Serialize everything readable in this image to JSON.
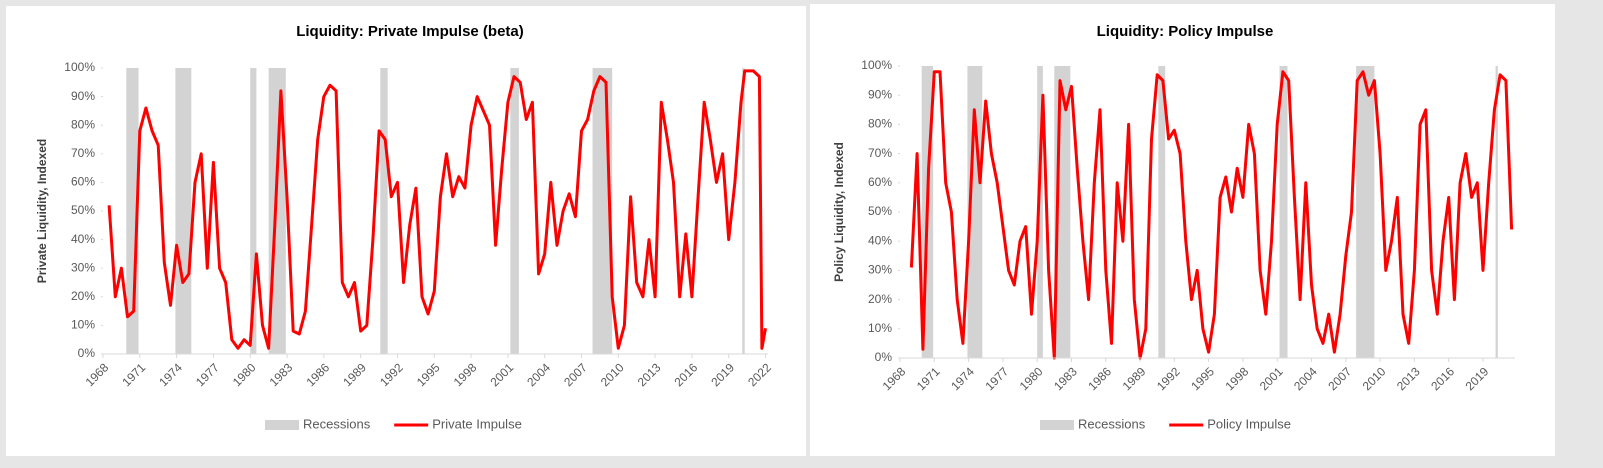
{
  "chart_data": [
    {
      "type": "line",
      "title": "Liquidity: Private Impulse (beta)",
      "y_label": "Private Liquidity, Indexed",
      "xlim": [
        1968,
        2022.2
      ],
      "xticks": [
        1968,
        1971,
        1974,
        1977,
        1980,
        1983,
        1986,
        1989,
        1992,
        1995,
        1998,
        2001,
        2004,
        2007,
        2010,
        2013,
        2016,
        2019,
        2022
      ],
      "ylim": [
        0,
        100
      ],
      "yticks": [
        {
          "value": 0,
          "label": "0%"
        },
        {
          "value": 10,
          "label": "10%"
        },
        {
          "value": 20,
          "label": "20%"
        },
        {
          "value": 30,
          "label": "30%"
        },
        {
          "value": 40,
          "label": "40%"
        },
        {
          "value": 50,
          "label": "50%"
        },
        {
          "value": 60,
          "label": "60%"
        },
        {
          "value": 70,
          "label": "70%"
        },
        {
          "value": 80,
          "label": "80%"
        },
        {
          "value": 90,
          "label": "90%"
        },
        {
          "value": 100,
          "label": "100%"
        }
      ],
      "series": [
        {
          "name": "Recessions",
          "color": "#d3d3d3",
          "ranges": [
            [
              1969.9,
              1970.9
            ],
            [
              1973.9,
              1975.2
            ],
            [
              1980.0,
              1980.5
            ],
            [
              1981.5,
              1982.9
            ],
            [
              1990.6,
              1991.2
            ],
            [
              2001.2,
              2001.9
            ],
            [
              2007.9,
              2009.5
            ],
            [
              2020.1,
              2020.3
            ]
          ]
        },
        {
          "name": "Private Impulse",
          "color": "#ff0000",
          "x": [
            1968.5,
            1969,
            1969.5,
            1970,
            1970.5,
            1971,
            1971.5,
            1972,
            1972.5,
            1973,
            1973.5,
            1974,
            1974.5,
            1975,
            1975.5,
            1976,
            1976.5,
            1977,
            1977.5,
            1978,
            1978.5,
            1979,
            1979.5,
            1980,
            1980.5,
            1981,
            1981.5,
            1982,
            1982.5,
            1983,
            1983.5,
            1984,
            1984.5,
            1985,
            1985.5,
            1986,
            1986.5,
            1987,
            1987.5,
            1988,
            1988.5,
            1989,
            1989.5,
            1990,
            1990.5,
            1991,
            1991.5,
            1992,
            1992.5,
            1993,
            1993.5,
            1994,
            1994.5,
            1995,
            1995.5,
            1996,
            1996.5,
            1997,
            1997.5,
            1998,
            1998.5,
            1999,
            1999.5,
            2000,
            2000.5,
            2001,
            2001.5,
            2002,
            2002.5,
            2003,
            2003.5,
            2004,
            2004.5,
            2005,
            2005.5,
            2006,
            2006.5,
            2007,
            2007.5,
            2008,
            2008.5,
            2009,
            2009.5,
            2010,
            2010.5,
            2011,
            2011.5,
            2012,
            2012.5,
            2013,
            2013.5,
            2014,
            2014.5,
            2015,
            2015.5,
            2016,
            2016.5,
            2017,
            2017.5,
            2018,
            2018.5,
            2019,
            2019.5,
            2020,
            2020.3,
            2021,
            2021.5,
            2021.7,
            2022
          ],
          "values": [
            52,
            20,
            30,
            13,
            15,
            78,
            86,
            78,
            73,
            32,
            17,
            38,
            25,
            28,
            60,
            70,
            30,
            67,
            30,
            25,
            5,
            2,
            5,
            3,
            35,
            10,
            2,
            45,
            92,
            55,
            8,
            7,
            15,
            45,
            75,
            90,
            94,
            92,
            25,
            20,
            25,
            8,
            10,
            40,
            78,
            75,
            55,
            60,
            25,
            45,
            58,
            20,
            14,
            22,
            55,
            70,
            55,
            62,
            58,
            80,
            90,
            85,
            80,
            38,
            65,
            88,
            97,
            95,
            82,
            88,
            28,
            35,
            60,
            38,
            50,
            56,
            48,
            78,
            82,
            92,
            97,
            95,
            20,
            2,
            10,
            55,
            25,
            20,
            40,
            20,
            88,
            75,
            60,
            20,
            42,
            20,
            55,
            88,
            75,
            60,
            70,
            40,
            60,
            88,
            99,
            99,
            97,
            2,
            9
          ]
        }
      ]
    },
    {
      "type": "line",
      "title": "Liquidity: Policy Impulse",
      "y_label": "Policy Liquidity, Indexed",
      "xlim": [
        1968,
        2021.8
      ],
      "xticks": [
        1968,
        1971,
        1974,
        1977,
        1980,
        1983,
        1986,
        1989,
        1992,
        1995,
        1998,
        2001,
        2004,
        2007,
        2010,
        2013,
        2016,
        2019
      ],
      "ylim": [
        0,
        100
      ],
      "yticks": [
        {
          "value": 0,
          "label": "0%"
        },
        {
          "value": 10,
          "label": "10%"
        },
        {
          "value": 20,
          "label": "20%"
        },
        {
          "value": 30,
          "label": "30%"
        },
        {
          "value": 40,
          "label": "40%"
        },
        {
          "value": 50,
          "label": "50%"
        },
        {
          "value": 60,
          "label": "60%"
        },
        {
          "value": 70,
          "label": "70%"
        },
        {
          "value": 80,
          "label": "80%"
        },
        {
          "value": 90,
          "label": "90%"
        },
        {
          "value": 100,
          "label": "100%"
        }
      ],
      "series": [
        {
          "name": "Recessions",
          "color": "#d3d3d3",
          "ranges": [
            [
              1969.9,
              1970.9
            ],
            [
              1973.9,
              1975.2
            ],
            [
              1980.0,
              1980.5
            ],
            [
              1981.5,
              1982.9
            ],
            [
              1990.6,
              1991.2
            ],
            [
              2001.2,
              2001.9
            ],
            [
              2007.9,
              2009.5
            ],
            [
              2020.1,
              2020.3
            ]
          ]
        },
        {
          "name": "Policy Impulse",
          "color": "#ff0000",
          "x": [
            1969,
            1969.5,
            1970,
            1970.5,
            1971,
            1971.5,
            1972,
            1972.5,
            1973,
            1973.5,
            1974,
            1974.5,
            1975,
            1975.5,
            1976,
            1976.5,
            1977,
            1977.5,
            1978,
            1978.5,
            1979,
            1979.5,
            1980,
            1980.5,
            1981,
            1981.5,
            1982,
            1982.5,
            1983,
            1983.5,
            1984,
            1984.5,
            1985,
            1985.5,
            1986,
            1986.5,
            1987,
            1987.5,
            1988,
            1988.5,
            1989,
            1989.5,
            1990,
            1990.5,
            1991,
            1991.5,
            1992,
            1992.5,
            1993,
            1993.5,
            1994,
            1994.5,
            1995,
            1995.5,
            1996,
            1996.5,
            1997,
            1997.5,
            1998,
            1998.5,
            1999,
            1999.5,
            2000,
            2000.5,
            2001,
            2001.5,
            2002,
            2002.5,
            2003,
            2003.5,
            2004,
            2004.5,
            2005,
            2005.5,
            2006,
            2006.5,
            2007,
            2007.5,
            2008,
            2008.5,
            2009,
            2009.5,
            2010,
            2010.5,
            2011,
            2011.5,
            2012,
            2012.5,
            2013,
            2013.5,
            2014,
            2014.5,
            2015,
            2015.5,
            2016,
            2016.5,
            2017,
            2017.5,
            2018,
            2018.5,
            2019,
            2019.5,
            2020,
            2020.5,
            2021,
            2021.3,
            2021.5
          ],
          "values": [
            31,
            70,
            3,
            65,
            98,
            98,
            60,
            50,
            20,
            5,
            40,
            85,
            60,
            88,
            70,
            60,
            45,
            30,
            25,
            40,
            45,
            15,
            40,
            90,
            30,
            0,
            95,
            85,
            93,
            65,
            40,
            20,
            60,
            85,
            30,
            5,
            60,
            40,
            80,
            20,
            0,
            10,
            75,
            97,
            95,
            75,
            78,
            70,
            40,
            20,
            30,
            10,
            2,
            15,
            55,
            62,
            50,
            65,
            55,
            80,
            70,
            30,
            15,
            40,
            80,
            98,
            95,
            55,
            20,
            60,
            25,
            10,
            5,
            15,
            2,
            15,
            35,
            50,
            95,
            98,
            90,
            95,
            70,
            30,
            40,
            55,
            15,
            5,
            30,
            80,
            85,
            30,
            15,
            40,
            55,
            20,
            60,
            70,
            55,
            60,
            30,
            60,
            85,
            97,
            95,
            65,
            44
          ]
        }
      ]
    }
  ]
}
